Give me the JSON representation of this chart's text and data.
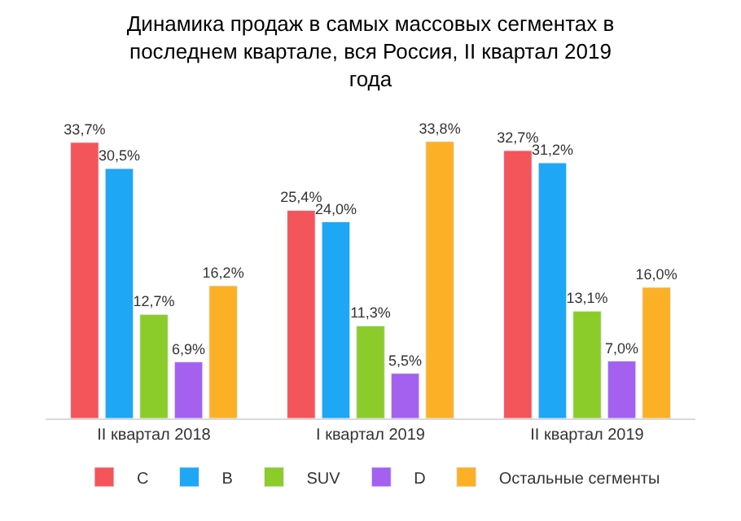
{
  "chart_data": {
    "type": "bar",
    "title": "Динамика продаж в самых массовых сегментах в последнем квартале, вся Россия, II квартал 2019 года",
    "categories": [
      "II квартал 2018",
      "I квартал 2019",
      "II квартал 2019"
    ],
    "series": [
      {
        "name": "C",
        "color": "#f4555a",
        "values": [
          33.7,
          25.4,
          32.7
        ],
        "value_labels": [
          "33,7%",
          "25,4%",
          "32,7%"
        ]
      },
      {
        "name": "B",
        "color": "#1ea7f5",
        "values": [
          30.5,
          24.0,
          31.2
        ],
        "value_labels": [
          "30,5%",
          "24,0%",
          "31,2%"
        ]
      },
      {
        "name": "SUV",
        "color": "#8ccc2a",
        "values": [
          12.7,
          11.3,
          13.1
        ],
        "value_labels": [
          "12,7%",
          "11,3%",
          "13,1%"
        ]
      },
      {
        "name": "D",
        "color": "#a461f0",
        "values": [
          6.9,
          5.5,
          7.0
        ],
        "value_labels": [
          "6,9%",
          "5,5%",
          "7,0%"
        ]
      },
      {
        "name": "Остальные сегменты",
        "color": "#fbb025",
        "values": [
          16.2,
          33.8,
          16.0
        ],
        "value_labels": [
          "16,2%",
          "33,8%",
          "16,0%"
        ]
      }
    ],
    "legend": "bottom"
  }
}
